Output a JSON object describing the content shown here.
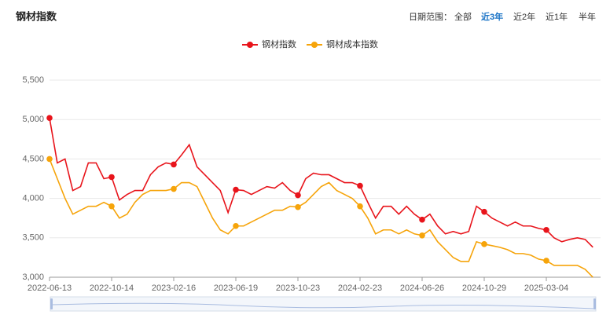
{
  "header": {
    "title": "钢材指数"
  },
  "range_selector": {
    "label": "日期范围：",
    "options": [
      "全部",
      "近3年",
      "近2年",
      "近1年",
      "半年"
    ],
    "active_index": 1
  },
  "chart_data": {
    "type": "line",
    "categories": [
      "2022-06-13",
      null,
      null,
      null,
      null,
      null,
      null,
      null,
      "2022-10-14",
      null,
      null,
      null,
      null,
      null,
      null,
      null,
      "2023-02-16",
      null,
      null,
      null,
      null,
      null,
      null,
      null,
      "2023-06-19",
      null,
      null,
      null,
      null,
      null,
      null,
      null,
      "2023-10-23",
      null,
      null,
      null,
      null,
      null,
      null,
      null,
      "2024-02-23",
      null,
      null,
      null,
      null,
      null,
      null,
      null,
      "2024-06-26",
      null,
      null,
      null,
      null,
      null,
      null,
      null,
      "2024-10-29",
      null,
      null,
      null,
      null,
      null,
      null,
      null,
      "2025-03-04",
      null,
      null,
      null,
      null,
      null,
      null
    ],
    "series": [
      {
        "name": "钢材指数",
        "color": "#e8141b",
        "values": [
          5020,
          4450,
          4500,
          4100,
          4150,
          4450,
          4450,
          4250,
          4270,
          3980,
          4050,
          4100,
          4100,
          4300,
          4400,
          4450,
          4430,
          4550,
          4680,
          4400,
          4300,
          4200,
          4100,
          3820,
          4110,
          4100,
          4050,
          4100,
          4150,
          4130,
          4200,
          4100,
          4040,
          4250,
          4320,
          4300,
          4300,
          4250,
          4200,
          4200,
          4160,
          3950,
          3750,
          3900,
          3900,
          3800,
          3900,
          3800,
          3730,
          3800,
          3650,
          3550,
          3580,
          3550,
          3580,
          3900,
          3830,
          3750,
          3700,
          3650,
          3700,
          3650,
          3650,
          3620,
          3600,
          3500,
          3450,
          3480,
          3500,
          3480,
          3380
        ]
      },
      {
        "name": "钢材成本指数",
        "color": "#f6a40a",
        "values": [
          4500,
          4250,
          4000,
          3800,
          3850,
          3900,
          3900,
          3950,
          3900,
          3750,
          3800,
          3950,
          4050,
          4100,
          4100,
          4100,
          4120,
          4200,
          4200,
          4150,
          3950,
          3750,
          3600,
          3550,
          3650,
          3650,
          3700,
          3750,
          3800,
          3850,
          3850,
          3900,
          3890,
          3950,
          4050,
          4150,
          4200,
          4100,
          4050,
          4000,
          3900,
          3750,
          3550,
          3600,
          3600,
          3550,
          3600,
          3550,
          3530,
          3600,
          3450,
          3350,
          3250,
          3200,
          3200,
          3450,
          3420,
          3400,
          3380,
          3350,
          3300,
          3300,
          3280,
          3230,
          3210,
          3150,
          3150,
          3150,
          3150,
          3100,
          3000
        ]
      }
    ],
    "ylim": [
      3000,
      5500
    ],
    "yticks": [
      {
        "value": 3000,
        "label": "3,000"
      },
      {
        "value": 3500,
        "label": "3,500"
      },
      {
        "value": 4000,
        "label": "4,000"
      },
      {
        "value": 4500,
        "label": "4,500"
      },
      {
        "value": 5000,
        "label": "5,000"
      },
      {
        "value": 5500,
        "label": "5,500"
      }
    ],
    "grid": true,
    "legend": "top"
  }
}
